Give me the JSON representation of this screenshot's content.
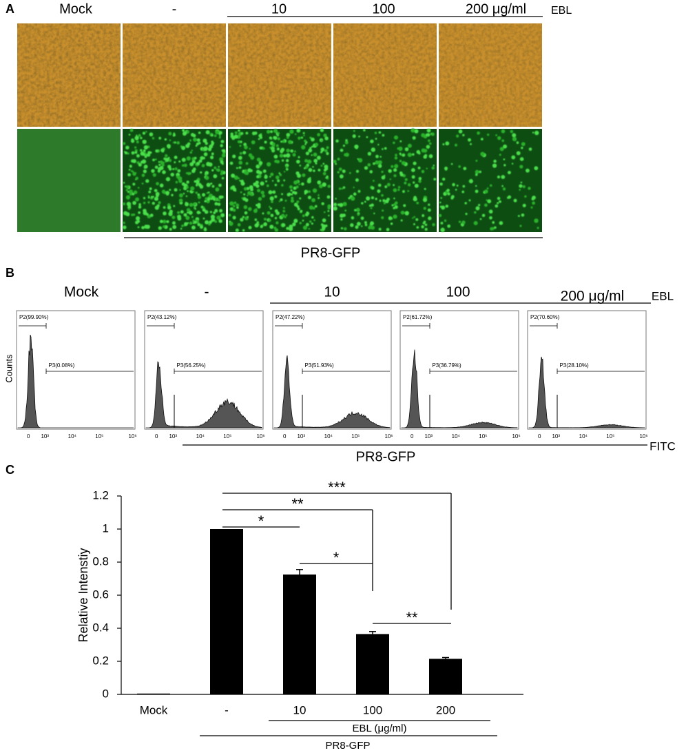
{
  "panel_a": {
    "label": "A",
    "columns": [
      "Mock",
      "-",
      "10",
      "100",
      "200 μg/ml"
    ],
    "treatment": "EBL",
    "virus": "PR8-GFP"
  },
  "panel_b": {
    "label": "B",
    "columns": [
      "Mock",
      "-",
      "10",
      "100",
      "200 μg/ml"
    ],
    "treatment": "EBL",
    "y_label": "Counts",
    "x_label": "FITC",
    "virus": "PR8-GFP",
    "x_ticks": [
      "0",
      "10³",
      "10⁴",
      "10⁵",
      "10⁶"
    ],
    "gates": [
      {
        "p2": "P2(99.90%)",
        "p3": "P3(0.08%)"
      },
      {
        "p2": "P2(43.12%)",
        "p3": "P3(56.25%)"
      },
      {
        "p2": "P2(47.22%)",
        "p3": "P3(51.93%)"
      },
      {
        "p2": "P2(61.72%)",
        "p3": "P3(36.79%)"
      },
      {
        "p2": "P2(70.60%)",
        "p3": "P3(28.10%)"
      }
    ]
  },
  "chart_data": {
    "type": "bar",
    "panel_label": "C",
    "categories": [
      "Mock",
      "-",
      "10",
      "100",
      "200"
    ],
    "values": [
      0.005,
      1.0,
      0.725,
      0.365,
      0.215
    ],
    "errors": [
      0,
      0,
      0.03,
      0.015,
      0.008
    ],
    "color": "#000000",
    "ylim": [
      0,
      1.2
    ],
    "yticks": [
      0,
      0.2,
      0.4,
      0.6,
      0.8,
      1,
      1.2
    ],
    "y_label": "Relative Intenstiy",
    "group_label": "EBL (μg/ml)",
    "virus": "PR8-GFP",
    "significance": [
      {
        "from": "-",
        "to": "10",
        "label": "*"
      },
      {
        "from": "-",
        "to": "100",
        "label": "**"
      },
      {
        "from": "-",
        "to": "200",
        "label": "***"
      },
      {
        "from": "10",
        "to": "100",
        "label": "*"
      },
      {
        "from": "100",
        "to": "200",
        "label": "**"
      }
    ]
  }
}
